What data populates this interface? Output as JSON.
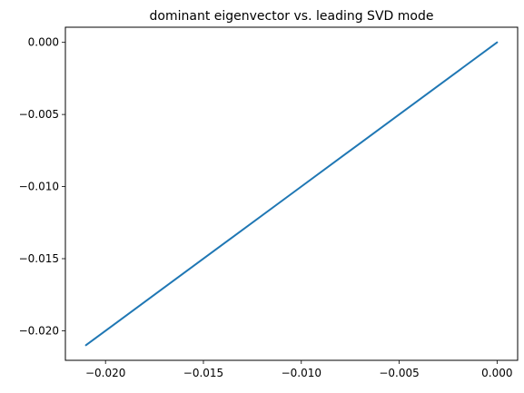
{
  "chart_data": {
    "type": "line",
    "title": "dominant eigenvector vs. leading SVD mode",
    "xlabel": "",
    "ylabel": "",
    "xlim": [
      -0.02205,
      0.00105
    ],
    "ylim": [
      -0.02205,
      0.00105
    ],
    "x_ticks": [
      -0.02,
      -0.015,
      -0.01,
      -0.005,
      0.0
    ],
    "x_tick_labels": [
      "−0.020",
      "−0.015",
      "−0.010",
      "−0.005",
      "0.000"
    ],
    "y_ticks": [
      0.0,
      -0.005,
      -0.01,
      -0.015,
      -0.02
    ],
    "y_tick_labels": [
      "0.000",
      "−0.005",
      "−0.010",
      "−0.015",
      "−0.020"
    ],
    "series": [
      {
        "color": "#1f77b4",
        "x": [
          -0.021,
          -0.0175,
          -0.014,
          -0.0105,
          -0.007,
          -0.0035,
          0.0
        ],
        "y": [
          -0.021,
          -0.0175,
          -0.014,
          -0.0105,
          -0.007,
          -0.0035,
          0.0
        ]
      }
    ],
    "grid": false,
    "legend": "none"
  }
}
